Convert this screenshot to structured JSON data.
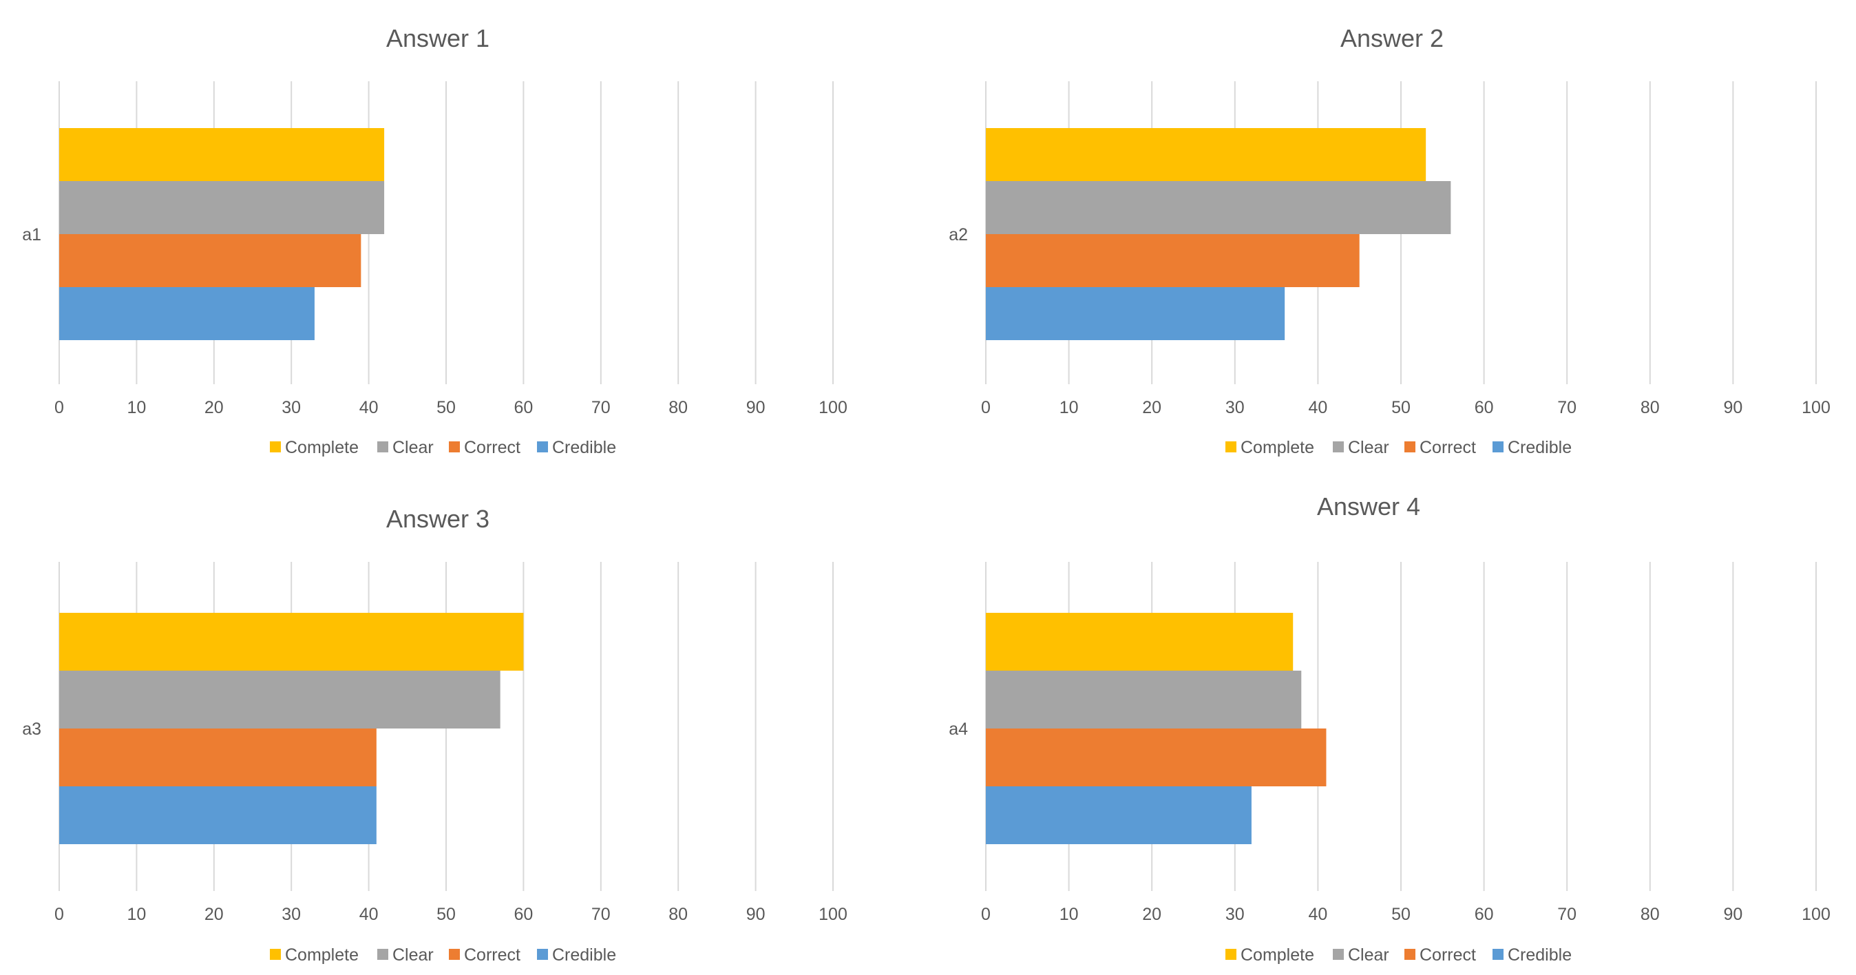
{
  "colors": {
    "complete": "#FFC000",
    "clear": "#A5A5A5",
    "correct": "#ED7D31",
    "credible": "#5B9BD5",
    "gridline": "#D9D9D9",
    "text": "#595959"
  },
  "chart_data": [
    {
      "type": "bar",
      "orientation": "horizontal",
      "title": "Answer 1",
      "categories": [
        "a1"
      ],
      "series": [
        {
          "name": "Complete",
          "values": [
            42
          ]
        },
        {
          "name": "Clear",
          "values": [
            42
          ]
        },
        {
          "name": "Correct",
          "values": [
            39
          ]
        },
        {
          "name": "Credible",
          "values": [
            33
          ]
        }
      ],
      "xlim": [
        0,
        100
      ],
      "x_ticks": [
        0,
        10,
        20,
        30,
        40,
        50,
        60,
        70,
        80,
        90,
        100
      ],
      "grid": true,
      "legend": "bottom"
    },
    {
      "type": "bar",
      "orientation": "horizontal",
      "title": "Answer 2",
      "categories": [
        "a2"
      ],
      "series": [
        {
          "name": "Complete",
          "values": [
            53
          ]
        },
        {
          "name": "Clear",
          "values": [
            56
          ]
        },
        {
          "name": "Correct",
          "values": [
            45
          ]
        },
        {
          "name": "Credible",
          "values": [
            36
          ]
        }
      ],
      "xlim": [
        0,
        100
      ],
      "x_ticks": [
        0,
        10,
        20,
        30,
        40,
        50,
        60,
        70,
        80,
        90,
        100
      ],
      "grid": true,
      "legend": "bottom"
    },
    {
      "type": "bar",
      "orientation": "horizontal",
      "title": "Answer 3",
      "categories": [
        "a3"
      ],
      "series": [
        {
          "name": "Complete",
          "values": [
            60
          ]
        },
        {
          "name": "Clear",
          "values": [
            57
          ]
        },
        {
          "name": "Correct",
          "values": [
            41
          ]
        },
        {
          "name": "Credible",
          "values": [
            41
          ]
        }
      ],
      "xlim": [
        0,
        100
      ],
      "x_ticks": [
        0,
        10,
        20,
        30,
        40,
        50,
        60,
        70,
        80,
        90,
        100
      ],
      "grid": true,
      "legend": "bottom"
    },
    {
      "type": "bar",
      "orientation": "horizontal",
      "title": "Answer 4",
      "categories": [
        "a4"
      ],
      "series": [
        {
          "name": "Complete",
          "values": [
            37
          ]
        },
        {
          "name": "Clear",
          "values": [
            38
          ]
        },
        {
          "name": "Correct",
          "values": [
            41
          ]
        },
        {
          "name": "Credible",
          "values": [
            32
          ]
        }
      ],
      "xlim": [
        0,
        100
      ],
      "x_ticks": [
        0,
        10,
        20,
        30,
        40,
        50,
        60,
        70,
        80,
        90,
        100
      ],
      "grid": true,
      "legend": "bottom"
    }
  ]
}
